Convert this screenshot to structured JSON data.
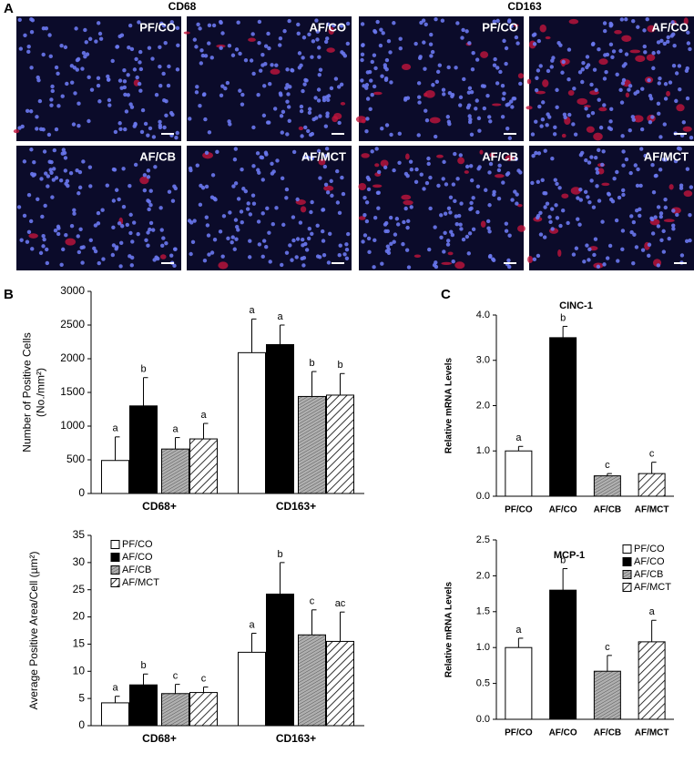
{
  "panel_labels": [
    "A",
    "B",
    "C"
  ],
  "images": {
    "column_titles": [
      "CD68",
      "CD163"
    ],
    "tiles": [
      [
        "PF/CO",
        "AF/CO",
        "PF/CO",
        "AF/CO"
      ],
      [
        "AF/CB",
        "AF/MCT",
        "AF/CB",
        "AF/MCT"
      ]
    ]
  },
  "chart_data": [
    {
      "type": "bar",
      "y_label": [
        "Number of Positive Cells",
        "(No./mm²)"
      ],
      "categories": [
        "CD68+",
        "CD163+"
      ],
      "series": [
        {
          "color": "#ffffff",
          "fill": "solid",
          "values": [
            490,
            2090
          ],
          "errors": [
            350,
            500
          ],
          "annotations": [
            "a",
            "a"
          ]
        },
        {
          "color": "#000000",
          "fill": "solid",
          "values": [
            1300,
            2210
          ],
          "errors": [
            420,
            290
          ],
          "annotations": [
            "b",
            "a"
          ]
        },
        {
          "color": "#a8a8a8",
          "fill": "dense",
          "values": [
            660,
            1440
          ],
          "errors": [
            170,
            370
          ],
          "annotations": [
            "a",
            "b"
          ]
        },
        {
          "color": "#ffffff",
          "fill": "diagonal",
          "values": [
            810,
            1460
          ],
          "errors": [
            230,
            320
          ],
          "annotations": [
            "a",
            "b"
          ]
        }
      ],
      "ylim": [
        0,
        3000
      ],
      "yticks": [
        0,
        500,
        1000,
        1500,
        2000,
        2500,
        3000
      ]
    },
    {
      "type": "bar",
      "y_label": [
        "Average Positive Area/Cell (µm²)"
      ],
      "categories": [
        "CD68+",
        "CD163+"
      ],
      "series": [
        {
          "name": "PF/CO",
          "color": "#ffffff",
          "fill": "solid",
          "values": [
            4.2,
            13.5
          ],
          "errors": [
            1.2,
            3.5
          ],
          "annotations": [
            "a",
            "a"
          ]
        },
        {
          "name": "AF/CO",
          "color": "#000000",
          "fill": "solid",
          "values": [
            7.5,
            24.2
          ],
          "errors": [
            2,
            5.8
          ],
          "annotations": [
            "b",
            "b"
          ]
        },
        {
          "name": "AF/CB",
          "color": "#a8a8a8",
          "fill": "dense",
          "values": [
            5.9,
            16.7
          ],
          "errors": [
            1.7,
            4.6
          ],
          "annotations": [
            "c",
            "c"
          ]
        },
        {
          "name": "AF/MCT",
          "color": "#ffffff",
          "fill": "diagonal",
          "values": [
            6.1,
            15.5
          ],
          "errors": [
            1,
            5.4
          ],
          "annotations": [
            "c",
            "ac"
          ]
        }
      ],
      "ylim": [
        0,
        35
      ],
      "yticks": [
        0,
        5,
        10,
        15,
        20,
        25,
        30,
        35
      ],
      "legend": "upper left"
    },
    {
      "type": "bar",
      "title": "CINC-1",
      "y_label": [
        "Relative mRNA Levels"
      ],
      "categories": [
        "PF/CO",
        "AF/CO",
        "AF/CB",
        "AF/MCT"
      ],
      "values": [
        1.0,
        3.5,
        0.45,
        0.5
      ],
      "errors": [
        0.1,
        0.25,
        0.05,
        0.25
      ],
      "annotations": [
        "a",
        "b",
        "c",
        "c"
      ],
      "colors": [
        "#ffffff",
        "#000000",
        "#a8a8a8",
        "#ffffff"
      ],
      "fills": [
        "solid",
        "solid",
        "dense",
        "diagonal"
      ],
      "ylim": [
        0,
        4
      ],
      "yticks": [
        {
          "value": 0,
          "label": "0.0"
        },
        {
          "value": 1,
          "label": "1.0"
        },
        {
          "value": 2,
          "label": "2.0"
        },
        {
          "value": 3,
          "label": "3.0"
        },
        {
          "value": 4,
          "label": "4.0"
        }
      ]
    },
    {
      "type": "bar",
      "title": "MCP-1",
      "y_label": [
        "Relative mRNA Levels"
      ],
      "categories": [
        "PF/CO",
        "AF/CO",
        "AF/CB",
        "AF/MCT"
      ],
      "values": [
        1.0,
        1.8,
        0.67,
        1.08
      ],
      "errors": [
        0.13,
        0.3,
        0.22,
        0.3
      ],
      "annotations": [
        "a",
        "b",
        "c",
        "a"
      ],
      "colors": [
        "#ffffff",
        "#000000",
        "#a8a8a8",
        "#ffffff"
      ],
      "fills": [
        "solid",
        "solid",
        "dense",
        "diagonal"
      ],
      "ylim": [
        0,
        2.5
      ],
      "yticks": [
        {
          "value": 0,
          "label": "0.0"
        },
        {
          "value": 0.5,
          "label": "0.5"
        },
        {
          "value": 1,
          "label": "1.0"
        },
        {
          "value": 1.5,
          "label": "1.5"
        },
        {
          "value": 2,
          "label": "2.0"
        },
        {
          "value": 2.5,
          "label": "2.5"
        }
      ],
      "legend": "upper right"
    }
  ]
}
